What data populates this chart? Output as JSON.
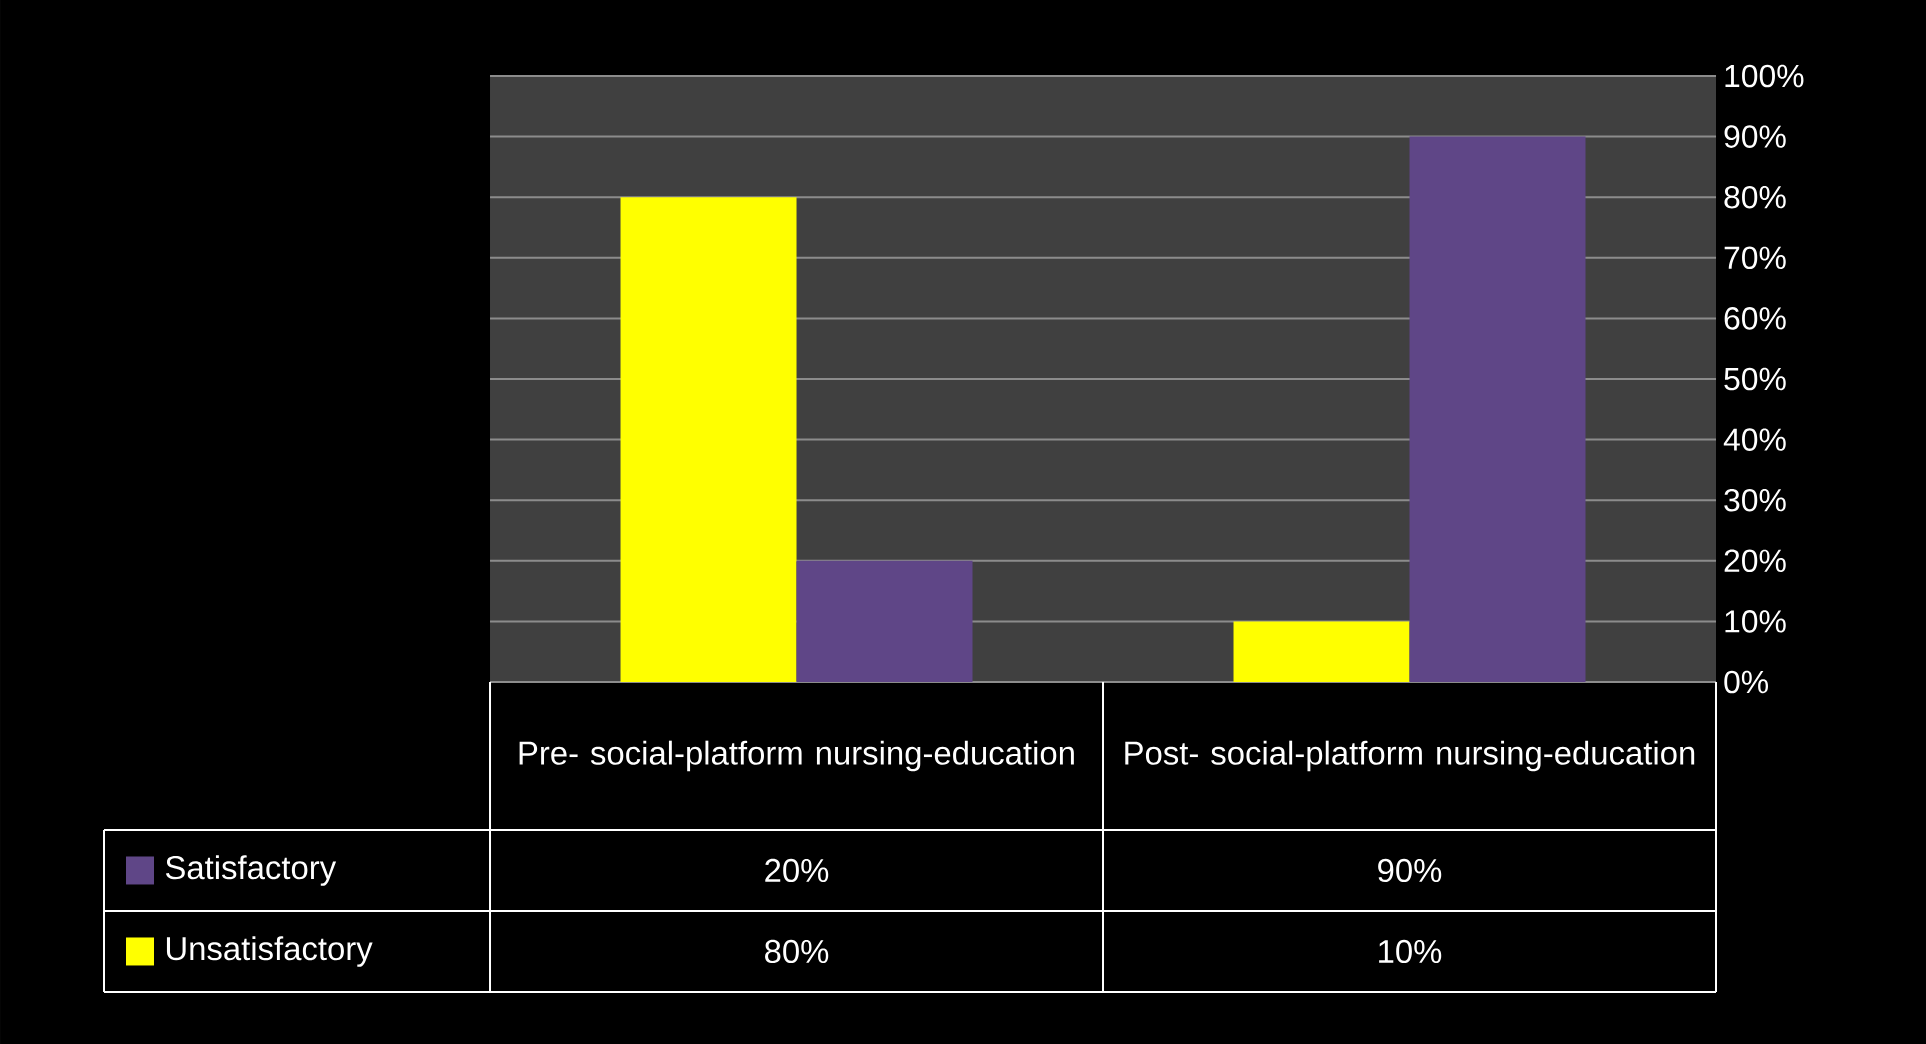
{
  "chart_data": {
    "type": "bar",
    "categories": [
      "Pre- social-platform nursing-education",
      "Post- social-platform nursing-education"
    ],
    "series": [
      {
        "name": "Unsatisfactory",
        "color": "#ffff00",
        "values": [
          80,
          10
        ],
        "value_labels": [
          "80%",
          "10%"
        ]
      },
      {
        "name": "Satisfactory",
        "color": "#5f4687",
        "values": [
          20,
          90
        ],
        "value_labels": [
          "20%",
          "90%"
        ]
      }
    ],
    "ylim": [
      0,
      100
    ],
    "yticks": [
      {
        "value": 0,
        "label": "0%"
      },
      {
        "value": 10,
        "label": "10%"
      },
      {
        "value": 20,
        "label": "20%"
      },
      {
        "value": 30,
        "label": "30%"
      },
      {
        "value": 40,
        "label": "40%"
      },
      {
        "value": 50,
        "label": "50%"
      },
      {
        "value": 60,
        "label": "60%"
      },
      {
        "value": 70,
        "label": "70%"
      },
      {
        "value": 80,
        "label": "80%"
      },
      {
        "value": 90,
        "label": "90%"
      },
      {
        "value": 100,
        "label": "100%"
      }
    ],
    "grid": "y",
    "legend": "bottom"
  }
}
